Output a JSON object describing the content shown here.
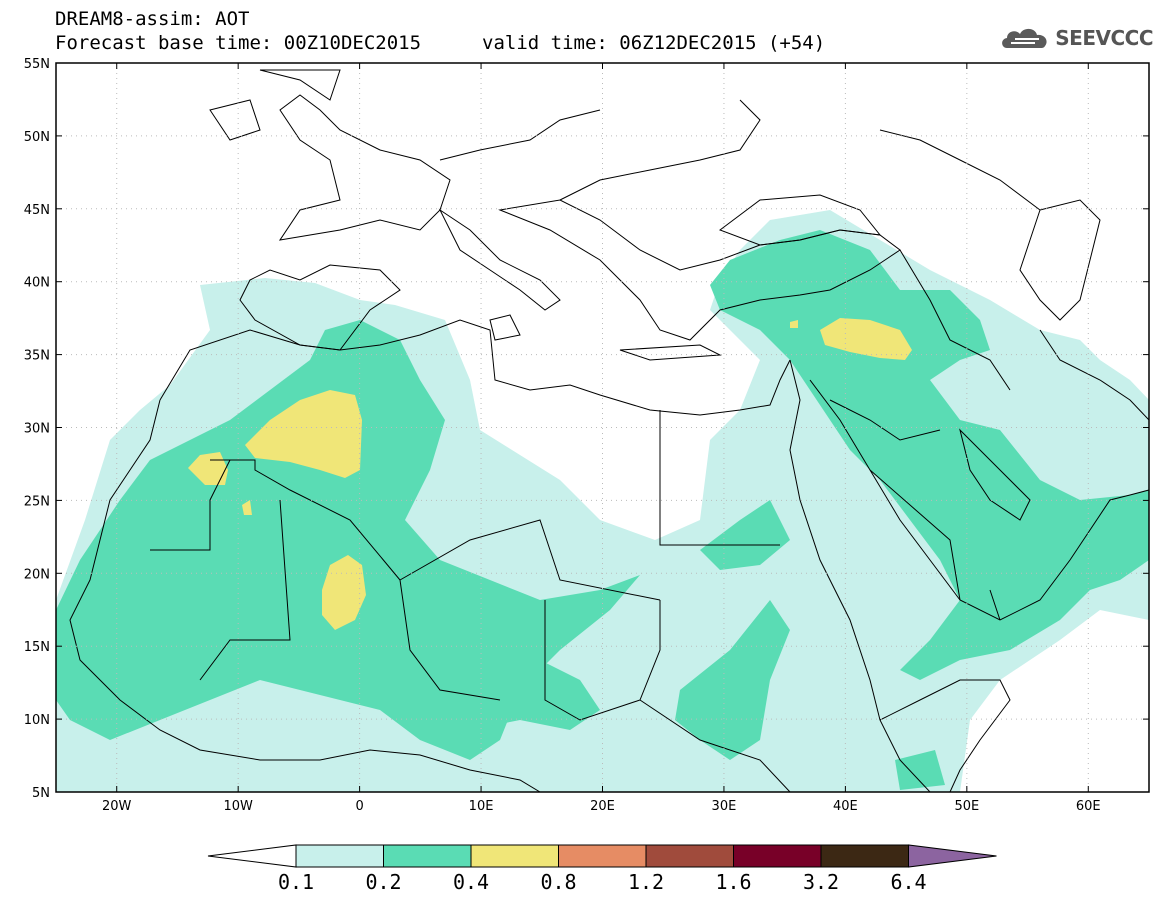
{
  "header": {
    "line1": "DREAM8-assim: AOT",
    "base_time": "Forecast base time: 00Z10DEC2015",
    "valid_time": "valid time: 06Z12DEC2015 (+54)"
  },
  "logo": {
    "text": "SEEVCCC",
    "icon": "cloud-icon"
  },
  "map_data": {
    "lon_range": [
      -25,
      65
    ],
    "lat_range": [
      5,
      55
    ],
    "lon_ticks": [
      {
        "v": -20,
        "label": "20W"
      },
      {
        "v": -10,
        "label": "10W"
      },
      {
        "v": 0,
        "label": "0"
      },
      {
        "v": 10,
        "label": "10E"
      },
      {
        "v": 20,
        "label": "20E"
      },
      {
        "v": 30,
        "label": "30E"
      },
      {
        "v": 40,
        "label": "40E"
      },
      {
        "v": 50,
        "label": "50E"
      },
      {
        "v": 60,
        "label": "60E"
      }
    ],
    "lat_ticks": [
      {
        "v": 55,
        "label": "55N"
      },
      {
        "v": 50,
        "label": "50N"
      },
      {
        "v": 45,
        "label": "45N"
      },
      {
        "v": 40,
        "label": "40N"
      },
      {
        "v": 35,
        "label": "35N"
      },
      {
        "v": 30,
        "label": "30N"
      },
      {
        "v": 25,
        "label": "25N"
      },
      {
        "v": 20,
        "label": "20N"
      },
      {
        "v": 15,
        "label": "15N"
      },
      {
        "v": 10,
        "label": "10N"
      },
      {
        "v": 5,
        "label": "5N"
      }
    ],
    "grid": true
  },
  "colorbar": {
    "labels": [
      "0.1",
      "0.2",
      "0.4",
      "0.8",
      "1.2",
      "1.6",
      "3.2",
      "6.4"
    ],
    "colors": [
      "#c8f0eb",
      "#5adcb4",
      "#f0e678",
      "#e68c64",
      "#a04b3c",
      "#780028",
      "#3c2814",
      "#8c64a0"
    ]
  }
}
